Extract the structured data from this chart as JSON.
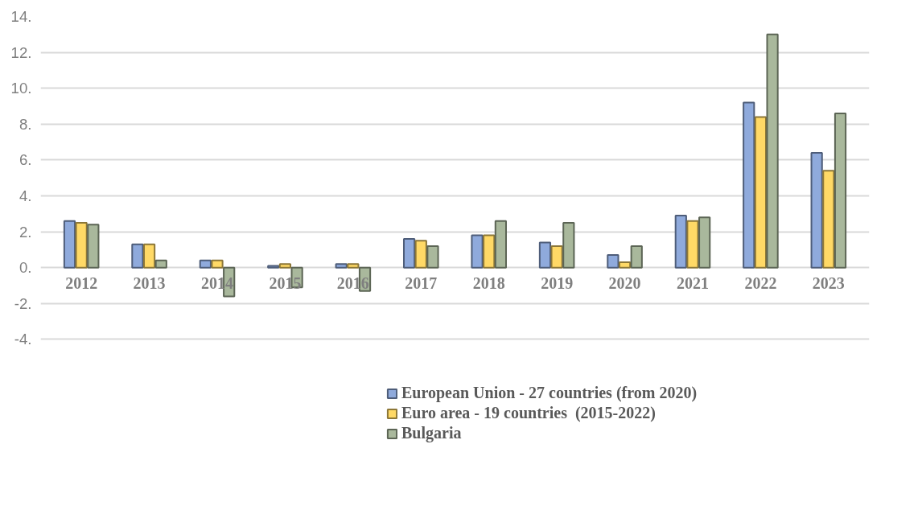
{
  "chart_data": {
    "type": "bar",
    "categories": [
      "2012",
      "2013",
      "2014",
      "2015",
      "2016",
      "2017",
      "2018",
      "2019",
      "2020",
      "2021",
      "2022",
      "2023"
    ],
    "series": [
      {
        "name": "European Union - 27 countries (from 2020)",
        "color": "#8faadc",
        "values": [
          2.6,
          1.3,
          0.4,
          0.1,
          0.2,
          1.6,
          1.8,
          1.4,
          0.7,
          2.9,
          9.2,
          6.4
        ]
      },
      {
        "name": "Euro area - 19 countries  (2015-2022)",
        "color": "#ffd966",
        "values": [
          2.5,
          1.3,
          0.4,
          0.2,
          0.2,
          1.5,
          1.8,
          1.2,
          0.3,
          2.6,
          8.4,
          5.4
        ]
      },
      {
        "name": "Bulgaria",
        "color": "#a9b89c",
        "values": [
          2.4,
          0.4,
          -1.6,
          -1.1,
          -1.3,
          1.2,
          2.6,
          2.5,
          1.2,
          2.8,
          13.0,
          8.6
        ]
      }
    ],
    "ylim": [
      -4,
      14
    ],
    "yticks": [
      {
        "value": -4,
        "label": "-4."
      },
      {
        "value": -2,
        "label": "-2."
      },
      {
        "value": 0,
        "label": "0."
      },
      {
        "value": 2,
        "label": "2."
      },
      {
        "value": 4,
        "label": "4."
      },
      {
        "value": 6,
        "label": "6."
      },
      {
        "value": 8,
        "label": "8."
      },
      {
        "value": 10,
        "label": "10."
      },
      {
        "value": 12,
        "label": "12."
      },
      {
        "value": 14,
        "label": "14."
      }
    ],
    "grid": "y",
    "legend": "bottom"
  }
}
